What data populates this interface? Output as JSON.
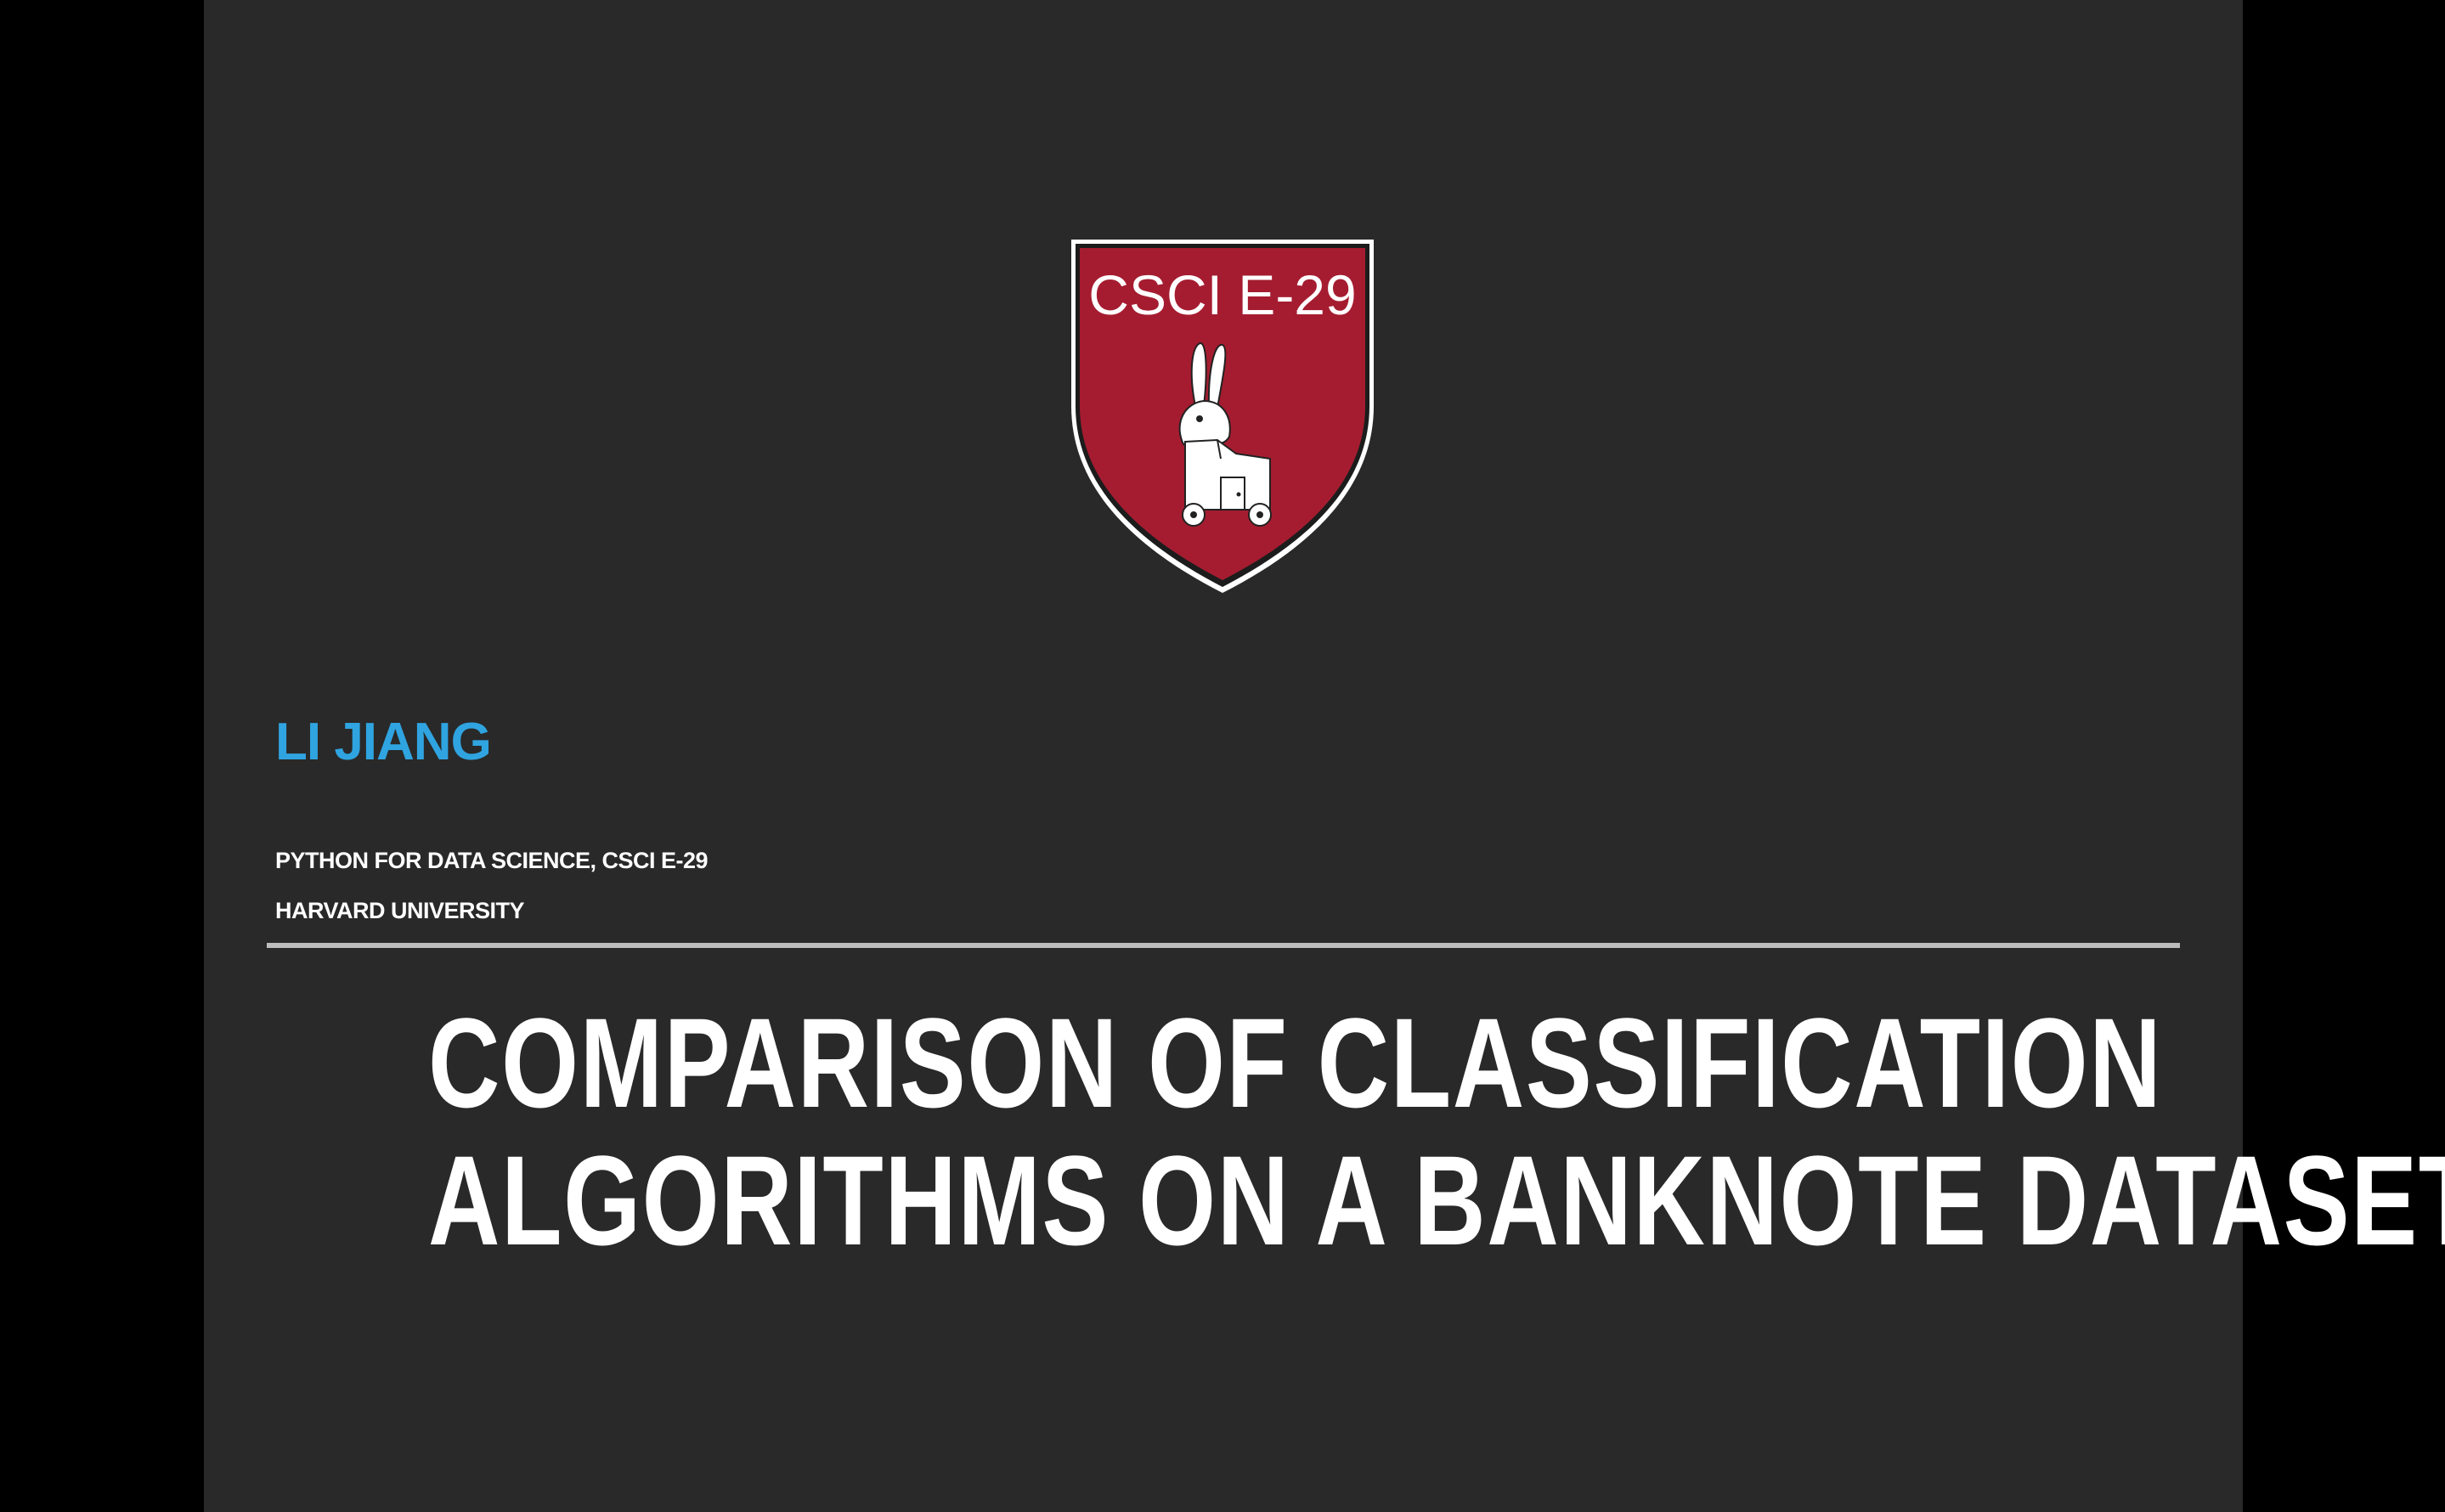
{
  "slide": {
    "logo": {
      "icon": "csci-e29-shield-icon",
      "text": "CSCI E-29",
      "colors": {
        "shield": "#a51c30",
        "border": "#ffffff"
      }
    },
    "author": "LI JIANG",
    "course": "PYTHON FOR DATA SCIENCE, CSCI E-29",
    "institution": "HARVARD UNIVERSITY",
    "title_lines": [
      "COMPARISON OF CLASSIFICATION",
      "ALGORITHMS ON A BANKNOTE DATASET"
    ],
    "colors": {
      "background": "#292929",
      "author": "#2fa4e0",
      "text": "#ffffff",
      "rule": "#bdbdbd"
    }
  }
}
